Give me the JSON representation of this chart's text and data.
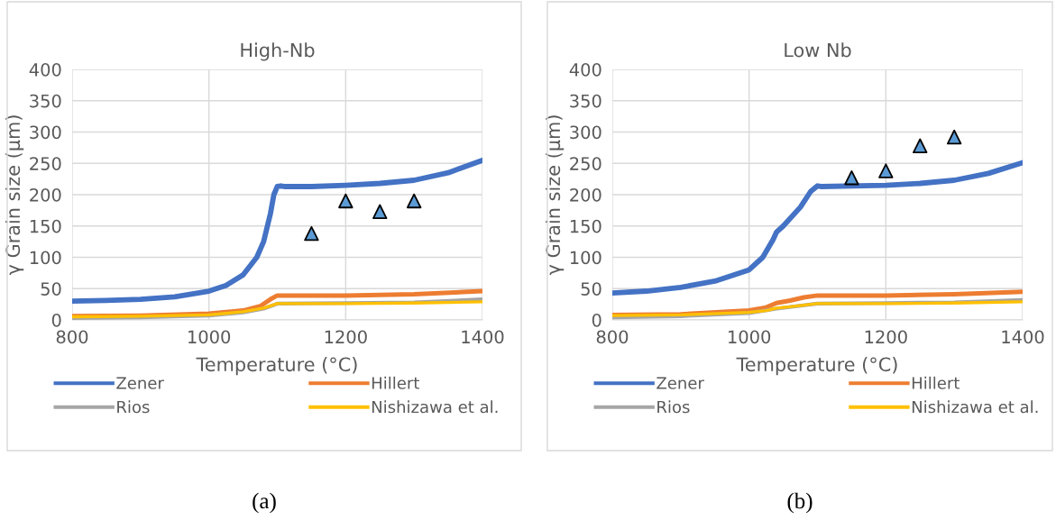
{
  "chart_data": [
    {
      "type": "line",
      "title": "High-Nb",
      "xlabel": "Temperature (°C)",
      "ylabel": "γ Grain size (µm)",
      "xlim": [
        800,
        1400
      ],
      "xticks": [
        800,
        1000,
        1200,
        1400
      ],
      "ylim": [
        0,
        400
      ],
      "yticks": [
        0,
        50,
        100,
        150,
        200,
        250,
        300,
        350,
        400
      ],
      "grid": true,
      "legend": "bottom",
      "annotations": [
        "(a)"
      ],
      "series": [
        {
          "name": "Zener",
          "color": "#4472c4",
          "x": [
            800,
            850,
            900,
            950,
            1000,
            1025,
            1050,
            1070,
            1080,
            1090,
            1095,
            1100,
            1105,
            1110,
            1150,
            1200,
            1250,
            1300,
            1350,
            1400
          ],
          "values": [
            30,
            31,
            33,
            37,
            46,
            55,
            72,
            100,
            125,
            170,
            200,
            213,
            214,
            213,
            213,
            215,
            218,
            223,
            235,
            255
          ]
        },
        {
          "name": "Hillert",
          "color": "#ed7d31",
          "x": [
            800,
            900,
            1000,
            1050,
            1075,
            1090,
            1100,
            1200,
            1300,
            1400
          ],
          "values": [
            6,
            7,
            10,
            15,
            22,
            33,
            39,
            39,
            41,
            46
          ]
        },
        {
          "name": "Rios",
          "color": "#a5a5a5",
          "x": [
            800,
            900,
            1000,
            1050,
            1080,
            1100,
            1200,
            1300,
            1400
          ],
          "values": [
            3,
            4,
            7,
            12,
            18,
            26,
            27,
            28,
            33
          ]
        },
        {
          "name": "Nishizawa et al.",
          "color": "#ffc000",
          "x": [
            800,
            900,
            1000,
            1050,
            1080,
            1100,
            1200,
            1300,
            1400
          ],
          "values": [
            5,
            6,
            8,
            13,
            19,
            26,
            26,
            27,
            29
          ]
        },
        {
          "type": "scatter",
          "marker": "triangle",
          "color": "#5b9bd5",
          "x": [
            1150,
            1200,
            1250,
            1300
          ],
          "values": [
            138,
            190,
            173,
            190
          ]
        }
      ]
    },
    {
      "type": "line",
      "title": "Low Nb",
      "xlabel": "Temperature (°C)",
      "ylabel": "γ Grain size (µm)",
      "xlim": [
        800,
        1400
      ],
      "xticks": [
        800,
        1000,
        1200,
        1400
      ],
      "ylim": [
        0,
        400
      ],
      "yticks": [
        0,
        50,
        100,
        150,
        200,
        250,
        300,
        350,
        400
      ],
      "grid": true,
      "legend": "bottom",
      "annotations": [
        "(b)"
      ],
      "series": [
        {
          "name": "Zener",
          "color": "#4472c4",
          "x": [
            800,
            850,
            900,
            950,
            1000,
            1020,
            1035,
            1040,
            1050,
            1075,
            1090,
            1100,
            1105,
            1200,
            1250,
            1300,
            1350,
            1400
          ],
          "values": [
            43,
            46,
            52,
            62,
            80,
            100,
            128,
            140,
            150,
            180,
            205,
            214,
            213,
            215,
            218,
            223,
            234,
            251
          ]
        },
        {
          "name": "Hillert",
          "color": "#ed7d31",
          "x": [
            800,
            900,
            1000,
            1025,
            1040,
            1060,
            1080,
            1100,
            1200,
            1300,
            1400
          ],
          "values": [
            8,
            9,
            15,
            20,
            27,
            31,
            36,
            39,
            39,
            41,
            45
          ]
        },
        {
          "name": "Rios",
          "color": "#a5a5a5",
          "x": [
            800,
            900,
            1000,
            1040,
            1100,
            1200,
            1300,
            1400
          ],
          "values": [
            4,
            6,
            11,
            18,
            26,
            27,
            28,
            32
          ]
        },
        {
          "name": "Nishizawa et al.",
          "color": "#ffc000",
          "x": [
            800,
            900,
            1000,
            1025,
            1040,
            1060,
            1100,
            1200,
            1300,
            1400
          ],
          "values": [
            7,
            8,
            12,
            15,
            19,
            21,
            26,
            26,
            27,
            29
          ]
        },
        {
          "type": "scatter",
          "marker": "triangle",
          "color": "#5b9bd5",
          "x": [
            1150,
            1200,
            1250,
            1300
          ],
          "values": [
            227,
            238,
            278,
            292
          ]
        }
      ]
    }
  ]
}
